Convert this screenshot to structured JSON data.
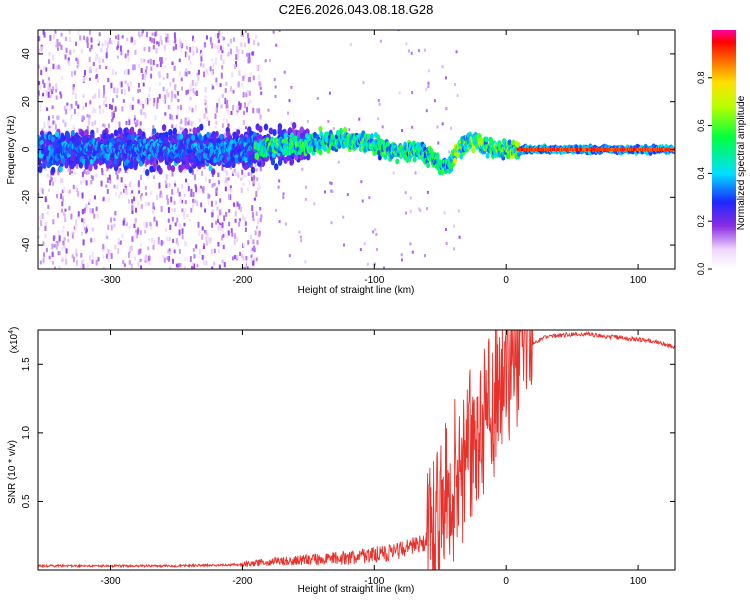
{
  "title": "C2E6.2026.043.08.18.G28",
  "colors": {
    "snr_line": "#e8312b",
    "axis": "#000000",
    "background": "#ffffff"
  },
  "chart_data": [
    {
      "type": "heatmap",
      "name": "spectrogram",
      "xlabel": "Height of straight line (km)",
      "ylabel": "Frequency (Hz)",
      "xlim": [
        -355,
        128
      ],
      "ylim": [
        -50,
        50
      ],
      "xticks": [
        -300,
        -200,
        -100,
        0,
        100
      ],
      "xtick_labels": [
        "-300",
        "-200",
        "-100",
        "0",
        "100"
      ],
      "yticks": [
        -40,
        -20,
        0,
        20,
        40
      ],
      "ytick_labels": [
        "-40",
        "-20",
        "0",
        "20",
        "40"
      ],
      "colorbar": {
        "label": "Normalized spectral amplitude",
        "range": [
          0,
          1
        ],
        "ticks": [
          0.0,
          0.2,
          0.4,
          0.6,
          0.8
        ],
        "tick_labels": [
          "0.0",
          "0.2",
          "0.4",
          "0.6",
          "0.8"
        ],
        "colormap": "rainbow"
      },
      "ridge": {
        "description_values": "dominant frequency (Hz) vs height (km)",
        "x": [
          -355,
          -300,
          -250,
          -200,
          -180,
          -160,
          -140,
          -120,
          -100,
          -90,
          -80,
          -70,
          -60,
          -55,
          -50,
          -45,
          -40,
          -35,
          -30,
          -25,
          -20,
          -10,
          0,
          10,
          50,
          100,
          128
        ],
        "y": [
          0,
          0,
          0,
          0,
          1,
          2,
          3.5,
          4,
          2,
          0,
          -1,
          0,
          -2,
          -4,
          -6,
          -8,
          -3,
          1,
          2.5,
          3.5,
          2,
          0.5,
          0,
          0,
          0,
          0,
          0
        ]
      }
    },
    {
      "type": "line",
      "name": "snr",
      "xlabel": "Height of straight line (km)",
      "ylabel": "SNR (10 * v/v)",
      "yscale_label": "(x10",
      "yscale_exponent": "4",
      "xlim": [
        -355,
        128
      ],
      "ylim": [
        0,
        1.75
      ],
      "xticks": [
        -300,
        -200,
        -100,
        0,
        100
      ],
      "xtick_labels": [
        "-300",
        "-200",
        "-100",
        "0",
        "100"
      ],
      "yticks": [
        0.5,
        1.0,
        1.5
      ],
      "ytick_labels": [
        "0.5",
        "1.0",
        "1.5"
      ],
      "series": [
        {
          "name": "SNR",
          "x": [
            -355,
            -300,
            -250,
            -200,
            -180,
            -160,
            -140,
            -120,
            -100,
            -80,
            -60,
            -50,
            -40,
            -30,
            -20,
            -10,
            0,
            10,
            20,
            30,
            40,
            50,
            60,
            70,
            80,
            90,
            100,
            110,
            120,
            128
          ],
          "y": [
            0.03,
            0.03,
            0.03,
            0.04,
            0.06,
            0.07,
            0.08,
            0.09,
            0.11,
            0.14,
            0.2,
            0.3,
            0.5,
            0.8,
            1.05,
            1.2,
            1.32,
            1.5,
            1.65,
            1.7,
            1.71,
            1.72,
            1.72,
            1.71,
            1.7,
            1.69,
            1.68,
            1.67,
            1.65,
            1.62
          ]
        }
      ]
    }
  ]
}
